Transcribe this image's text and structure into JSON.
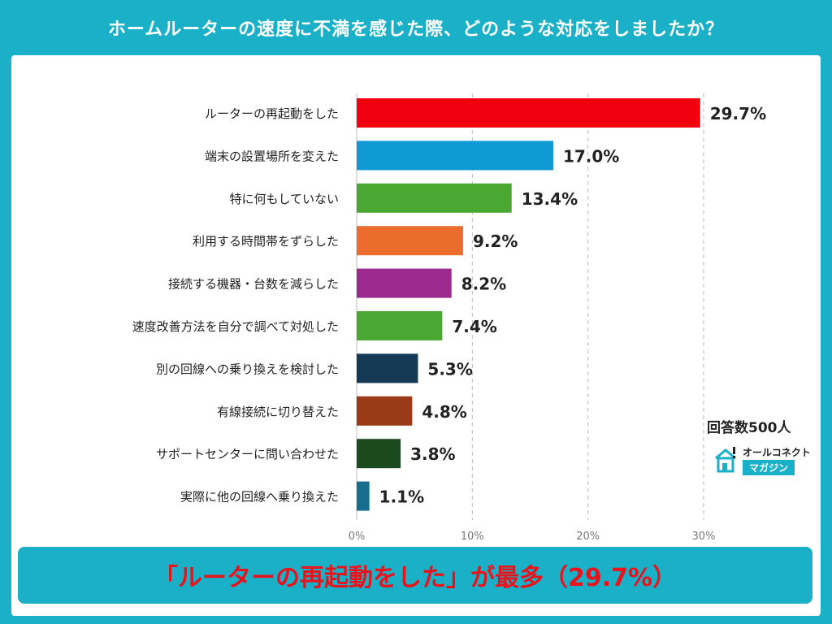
{
  "header": {
    "title": "ホームルーターの速度に不満を感じた際、どのような対応をしましたか？"
  },
  "sample": {
    "label": "回答数500人"
  },
  "logo": {
    "line1": "オールコネクト",
    "line2": "マガジン"
  },
  "footer": {
    "summary": "「ルーターの再起動をした」が最多（29.7%）"
  },
  "chart_data": {
    "type": "bar",
    "orientation": "horizontal",
    "title": "ホームルーターの速度に不満を感じた際、どのような対応をしましたか？",
    "xlabel": "",
    "ylabel": "",
    "xlim": [
      0,
      30
    ],
    "x_ticks": [
      "0%",
      "10%",
      "20%",
      "30%"
    ],
    "grid": "vertical-dashed",
    "categories": [
      "ルーターの再起動をした",
      "端末の設置場所を変えた",
      "特に何もしていない",
      "利用する時間帯をずらした",
      "接続する機器・台数を減らした",
      "速度改善方法を自分で調べて対処した",
      "別の回線への乗り換えを検討した",
      "有線接続に切り替えた",
      "サポートセンターに問い合わせた",
      "実際に他の回線へ乗り換えた"
    ],
    "values": [
      29.7,
      17.0,
      13.4,
      9.2,
      8.2,
      7.4,
      5.3,
      4.8,
      3.8,
      1.1
    ],
    "value_labels": [
      "29.7%",
      "17.0%",
      "13.4%",
      "9.2%",
      "8.2%",
      "7.4%",
      "5.3%",
      "4.8%",
      "3.8%",
      "1.1%"
    ],
    "colors": [
      "#f0000f",
      "#0f9ad4",
      "#4aa832",
      "#ec6c2e",
      "#9c2a8e",
      "#4aa832",
      "#153a56",
      "#9a3a16",
      "#1a4a1e",
      "#176e8c"
    ]
  }
}
